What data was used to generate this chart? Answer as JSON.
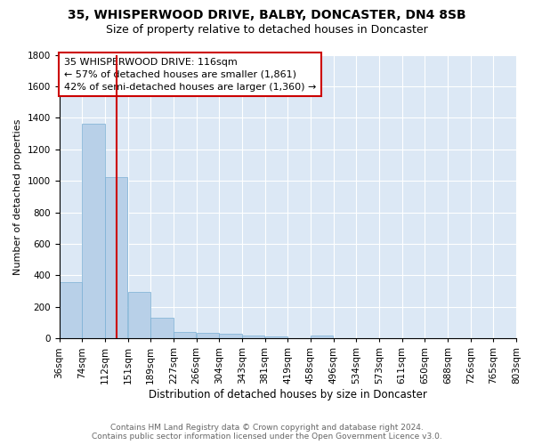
{
  "title": "35, WHISPERWOOD DRIVE, BALBY, DONCASTER, DN4 8SB",
  "subtitle": "Size of property relative to detached houses in Doncaster",
  "xlabel": "Distribution of detached houses by size in Doncaster",
  "ylabel": "Number of detached properties",
  "bins": [
    "36sqm",
    "74sqm",
    "112sqm",
    "151sqm",
    "189sqm",
    "227sqm",
    "266sqm",
    "304sqm",
    "343sqm",
    "381sqm",
    "419sqm",
    "458sqm",
    "496sqm",
    "534sqm",
    "573sqm",
    "611sqm",
    "650sqm",
    "688sqm",
    "726sqm",
    "765sqm",
    "803sqm"
  ],
  "values": [
    355,
    1360,
    1025,
    295,
    130,
    40,
    38,
    28,
    20,
    15,
    0,
    20,
    0,
    0,
    0,
    0,
    0,
    0,
    0,
    0
  ],
  "bar_color": "#b8d0e8",
  "bar_edge_color": "#7aafd4",
  "property_line_index": 2.0,
  "property_line_color": "#cc0000",
  "annotation_text": "35 WHISPERWOOD DRIVE: 116sqm\n← 57% of detached houses are smaller (1,861)\n42% of semi-detached houses are larger (1,360) →",
  "annotation_box_color": "white",
  "annotation_box_edge_color": "#cc0000",
  "ylim": [
    0,
    1800
  ],
  "yticks": [
    0,
    200,
    400,
    600,
    800,
    1000,
    1200,
    1400,
    1600,
    1800
  ],
  "background_color": "#dce8f5",
  "footer_text": "Contains HM Land Registry data © Crown copyright and database right 2024.\nContains public sector information licensed under the Open Government Licence v3.0.",
  "title_fontsize": 10,
  "subtitle_fontsize": 9,
  "ylabel_fontsize": 8,
  "xlabel_fontsize": 8.5,
  "tick_fontsize": 7.5,
  "annotation_fontsize": 8,
  "footer_fontsize": 6.5
}
